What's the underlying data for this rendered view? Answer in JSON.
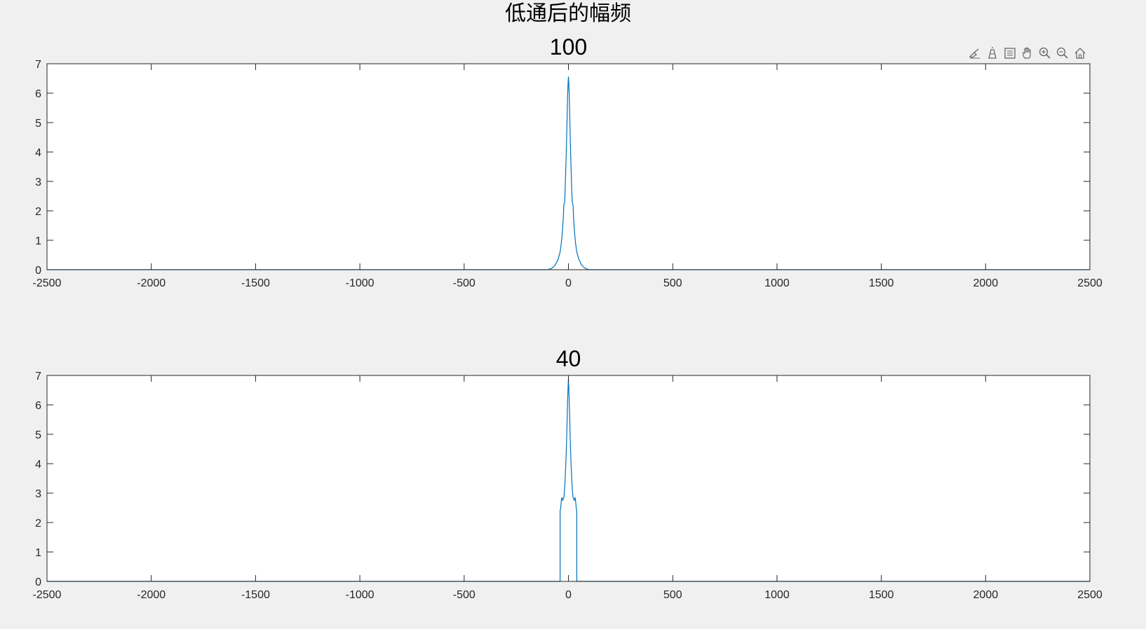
{
  "figure": {
    "title": "低通后的幅频",
    "background": "#f0f0f0"
  },
  "toolbar": {
    "icons": [
      "brush-icon",
      "data-cursor-icon",
      "insert-legend-icon",
      "pan-icon",
      "zoom-in-icon",
      "zoom-out-icon",
      "home-icon"
    ]
  },
  "chart_data": [
    {
      "type": "line",
      "title": "100",
      "xlabel": "",
      "ylabel": "",
      "xlim": [
        -2500,
        2500
      ],
      "ylim": [
        0,
        7
      ],
      "xticks": [
        -2500,
        -2000,
        -1500,
        -1000,
        -500,
        0,
        500,
        1000,
        1500,
        2000,
        2500
      ],
      "yticks": [
        0,
        1,
        2,
        3,
        4,
        5,
        6,
        7
      ],
      "grid": false,
      "line_color": "#0072bd",
      "series": [
        {
          "x": [
            -2500,
            -100,
            -90,
            -80,
            -70,
            -60,
            -50,
            -40,
            -35,
            -30,
            -25,
            -22,
            -20,
            -18,
            -15,
            -12,
            -10,
            -8,
            -6,
            -4,
            -2,
            0,
            2,
            4,
            6,
            8,
            10,
            12,
            15,
            18,
            20,
            22,
            25,
            30,
            35,
            40,
            50,
            60,
            70,
            80,
            90,
            100,
            2500
          ],
          "y": [
            0,
            0,
            0.02,
            0.05,
            0.1,
            0.2,
            0.35,
            0.6,
            0.85,
            1.2,
            1.7,
            2.2,
            2.25,
            2.3,
            2.9,
            3.6,
            4.1,
            4.7,
            5.3,
            5.9,
            6.3,
            6.55,
            6.3,
            5.9,
            5.3,
            4.7,
            4.1,
            3.6,
            2.9,
            2.3,
            2.25,
            2.2,
            1.7,
            1.2,
            0.85,
            0.6,
            0.35,
            0.2,
            0.1,
            0.05,
            0.02,
            0,
            0
          ]
        }
      ]
    },
    {
      "type": "line",
      "title": "40",
      "xlabel": "",
      "ylabel": "",
      "xlim": [
        -2500,
        2500
      ],
      "ylim": [
        0,
        7
      ],
      "xticks": [
        -2500,
        -2000,
        -1500,
        -1000,
        -500,
        0,
        500,
        1000,
        1500,
        2000,
        2500
      ],
      "yticks": [
        0,
        1,
        2,
        3,
        4,
        5,
        6,
        7
      ],
      "grid": false,
      "line_color": "#0072bd",
      "series": [
        {
          "x": [
            -2500,
            -40,
            -40,
            -38,
            -36,
            -34,
            -32,
            -30,
            -28,
            -25,
            -22,
            -20,
            -18,
            -15,
            -12,
            -10,
            -8,
            -6,
            -4,
            -2,
            0,
            2,
            4,
            6,
            8,
            10,
            12,
            15,
            18,
            20,
            22,
            25,
            28,
            30,
            32,
            34,
            36,
            38,
            40,
            40,
            2500
          ],
          "y": [
            0,
            0,
            2.4,
            2.45,
            2.6,
            2.75,
            2.85,
            2.8,
            2.75,
            2.8,
            2.85,
            3.0,
            3.2,
            3.6,
            4.1,
            4.5,
            5.0,
            5.6,
            6.1,
            6.55,
            6.9,
            6.55,
            6.1,
            5.6,
            5.0,
            4.5,
            4.1,
            3.6,
            3.2,
            3.0,
            2.85,
            2.8,
            2.75,
            2.8,
            2.85,
            2.75,
            2.6,
            2.45,
            2.4,
            0,
            0
          ]
        }
      ]
    }
  ]
}
